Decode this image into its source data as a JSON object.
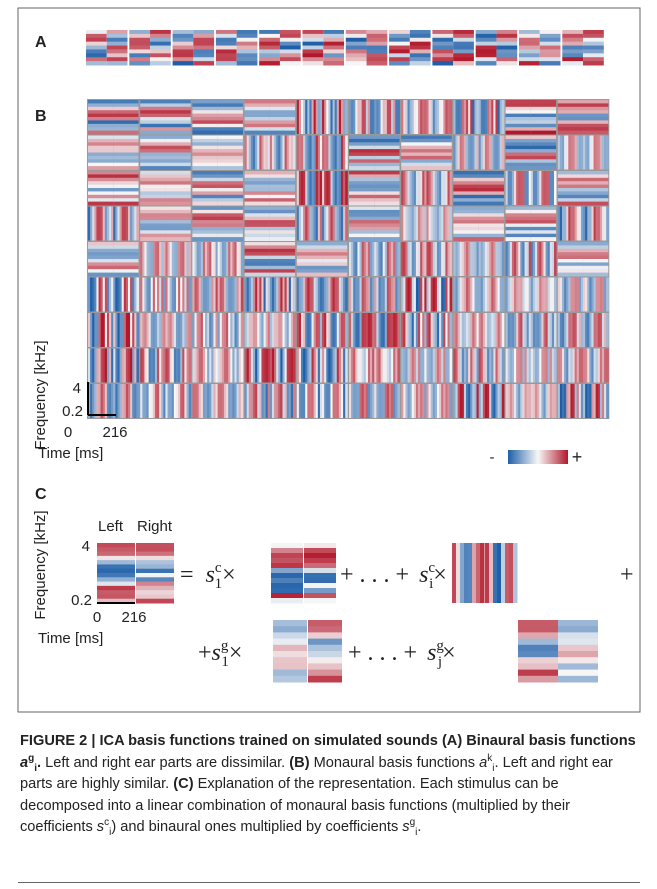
{
  "panels": {
    "a": {
      "label": "A"
    },
    "b": {
      "label": "B",
      "y_axis_label": "Frequency [kHz]",
      "y_ticks": [
        "4",
        "0.2"
      ],
      "x_ticks": [
        "0",
        "216"
      ],
      "x_axis_label": "Time [ms]",
      "colorbar": {
        "min_label": "-",
        "max_label": "+"
      }
    },
    "c": {
      "label": "C",
      "y_axis_label": "Frequency [kHz]",
      "y_ticks": [
        "4",
        "0.2"
      ],
      "x_ticks": [
        "0",
        "216"
      ],
      "x_axis_label": "Time [ms]",
      "channels": [
        "Left",
        "Right"
      ],
      "equation": {
        "equals": "=",
        "ellipsis": "+ . . . +",
        "plus": "+",
        "terms": [
          {
            "symbol": "s",
            "sub": "1",
            "sup": "c",
            "op": "×"
          },
          {
            "symbol": "s",
            "sub": "i",
            "sup": "c",
            "op": "×"
          },
          {
            "symbol": "s",
            "sub": "1",
            "sup": "g",
            "op": "×"
          },
          {
            "symbol": "s",
            "sub": "j",
            "sup": "g",
            "op": "×"
          }
        ]
      }
    }
  },
  "caption": [
    "FIGURE 2 | ICA basis functions trained on simulated sounds (A) Binaural basis functions ",
    "a",
    "g",
    "i",
    ".",
    " Left and right ear parts are dissimilar. ",
    "(B)",
    " Monaural basis functions ",
    "a",
    "k",
    "i",
    ". Left and right ear parts are highly similar. ",
    "(C)",
    " Explanation of the representation. Each stimulus can be decomposed into a linear combination of monaural basis functions (multiplied by their coefficients ",
    "s",
    "c",
    "i",
    ") and binaural ones multiplied by coefficients ",
    "s",
    "g",
    "i",
    "."
  ]
}
